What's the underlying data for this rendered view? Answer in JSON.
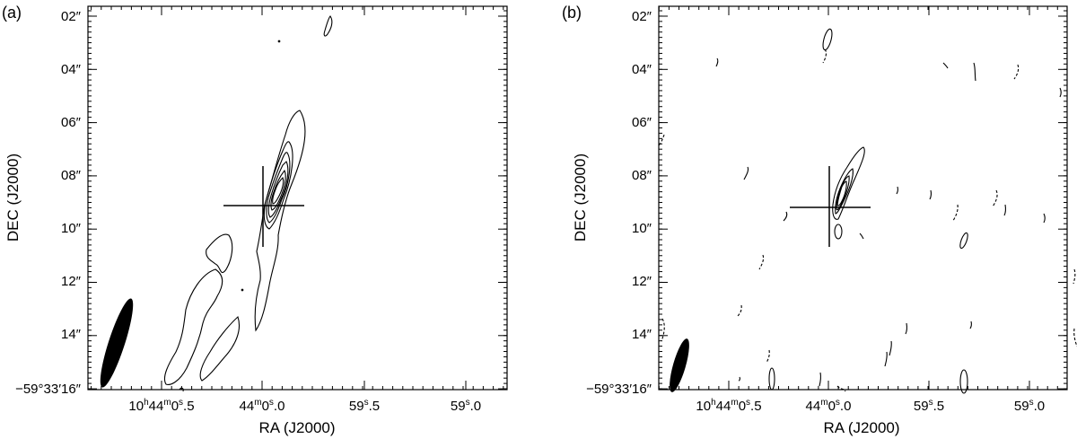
{
  "chart_data": [
    {
      "type": "contour",
      "panel_label": "(a)",
      "xlabel": "RA (J2000)",
      "ylabel": "DEC (J2000)",
      "x_ticks": [
        {
          "main": "10",
          "sup1": "h",
          "mid": "44",
          "sup2": "m",
          "tail": "0",
          "sup3": "s",
          "end": ".5",
          "value": 0.5
        },
        {
          "main": "44",
          "sup1": "m",
          "mid": "0",
          "sup2": "s",
          "tail": ".0",
          "value": 0.0
        },
        {
          "main": "59",
          "sup1": "s",
          "mid": ".5",
          "value": -0.5
        },
        {
          "main": "59",
          "sup1": "s",
          "mid": ".0",
          "value": -1.0
        }
      ],
      "y_ticks": [
        "02″",
        "04″",
        "06″",
        "08″",
        "10″",
        "12″",
        "14″",
        "−59°33′16″"
      ],
      "y_tick_values": [
        2,
        4,
        6,
        8,
        10,
        12,
        14,
        16
      ],
      "source_position": {
        "ra_offset_s": 0.0,
        "dec_arcsec": 9.2
      },
      "beam": {
        "shape": "ellipse",
        "position": "bottom-left"
      }
    },
    {
      "type": "contour",
      "panel_label": "(b)",
      "xlabel": "RA (J2000)",
      "ylabel": "DEC (J2000)",
      "x_ticks": [
        {
          "main": "10",
          "sup1": "h",
          "mid": "44",
          "sup2": "m",
          "tail": "0",
          "sup3": "s",
          "end": ".5",
          "value": 0.5
        },
        {
          "main": "44",
          "sup1": "m",
          "mid": "0",
          "sup2": "s",
          "tail": ".0",
          "value": 0.0
        },
        {
          "main": "59",
          "sup1": "s",
          "mid": ".5",
          "value": -0.5
        },
        {
          "main": "59",
          "sup1": "s",
          "mid": ".0",
          "value": -1.0
        }
      ],
      "y_ticks": [
        "02″",
        "04″",
        "06″",
        "08″",
        "10″",
        "12″",
        "14″",
        "−59°33′16″"
      ],
      "y_tick_values": [
        2,
        4,
        6,
        8,
        10,
        12,
        14,
        16
      ],
      "source_position": {
        "ra_offset_s": 0.0,
        "dec_arcsec": 9.2
      },
      "beam": {
        "shape": "ellipse",
        "position": "bottom-left"
      }
    }
  ]
}
